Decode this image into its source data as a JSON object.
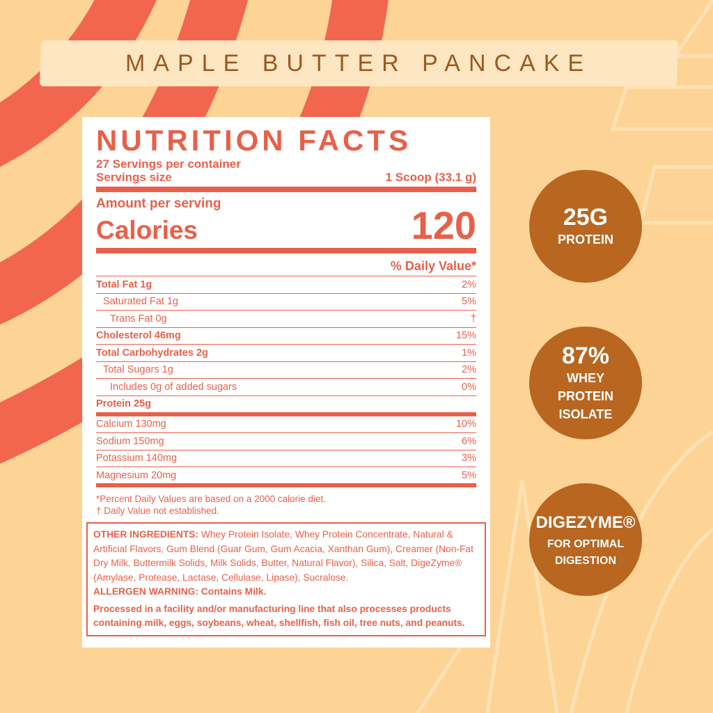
{
  "colors": {
    "background": "#fdd496",
    "stripe": "#f2664f",
    "label_red": "#e8604a",
    "badge": "#b86620",
    "banner": "#fde6c2"
  },
  "flavor": "MAPLE BUTTER PANCAKE",
  "label": {
    "title": "NUTRITION FACTS",
    "servings_per_container": "27 Servings per container",
    "serving_size_label": "Servings size",
    "serving_size_value": "1 Scoop (33.1 g)",
    "amount_per_serving": "Amount per serving",
    "calories_label": "Calories",
    "calories_value": "120",
    "daily_value_header": "% Daily Value*",
    "nutrients": [
      {
        "name": "Total Fat 1g",
        "dv": "2%"
      },
      {
        "name": "Saturated Fat 1g",
        "dv": "5%"
      },
      {
        "name": "Trans Fat 0g",
        "dv": "†"
      },
      {
        "name": "Cholesterol 46mg",
        "dv": "15%"
      },
      {
        "name": "Total Carbohydrates 2g",
        "dv": "1%"
      },
      {
        "name": "Total Sugars 1g",
        "dv": "2%"
      },
      {
        "name": "Includes 0g of added sugars",
        "dv": "0%"
      },
      {
        "name": "Protein 25g",
        "dv": ""
      },
      {
        "name": "Calcium 130mg",
        "dv": "10%"
      },
      {
        "name": "Sodium 150mg",
        "dv": "6%"
      },
      {
        "name": "Potassium 140mg",
        "dv": "3%"
      },
      {
        "name": "Magnesium 20mg",
        "dv": "5%"
      }
    ],
    "footnote1": "*Percent Daily Values are based on a 2000 calorie diet.",
    "footnote2": "† Daily Value not established.",
    "ingredients_label": "OTHER INGREDIENTS:",
    "ingredients": " Whey Protein Isolate, Whey Protein Concentrate, Natural & Artificial Flavors, Gum Blend (Guar Gum, Gum Acacia, Xanthan Gum), Creamer (Non-Fat Dry Milk, Buttermilk Solids, Milk Solids, Butter, Natural Flavor), Silica, Salt, DigeZyme® (Amylase, Protease, Lactase, Cellulase, Lipase), Sucralose.",
    "allergen": "ALLERGEN WARNING: Contains Milk.",
    "facility": "Processed in a facility and/or manufacturing line that also processes products containing milk, eggs, soybeans, wheat, shellfish, fish oil, tree nuts, and peanuts."
  },
  "badges": [
    {
      "big": "25G",
      "small": "PROTEIN"
    },
    {
      "big": "87%",
      "small": "WHEY PROTEIN ISOLATE"
    },
    {
      "big": "DIGEZYME®",
      "small": "FOR OPTIMAL DIGESTION"
    }
  ]
}
